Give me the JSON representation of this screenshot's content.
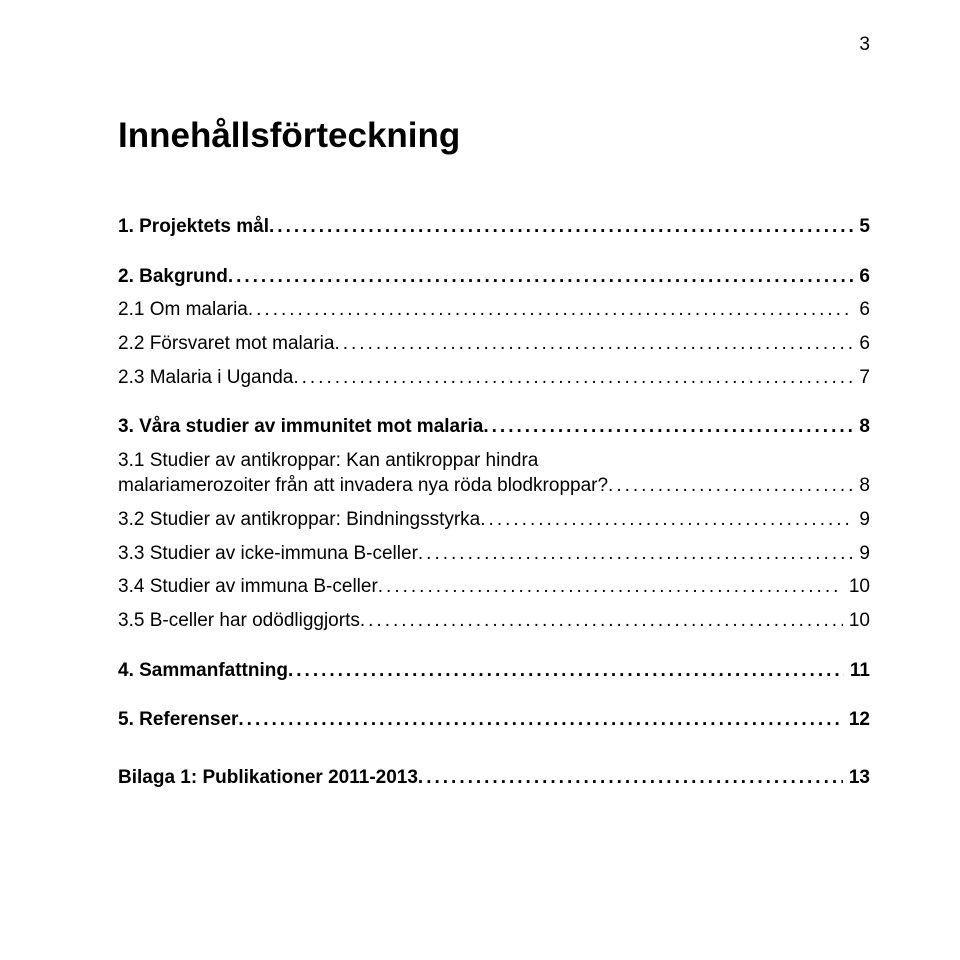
{
  "page_number": "3",
  "title": "Innehållsförteckning",
  "colors": {
    "background": "#ffffff",
    "text": "#000000"
  },
  "typography": {
    "title_fontsize_pt": 26,
    "body_fontsize_pt": 14,
    "font_family": "Verdana"
  },
  "toc": [
    {
      "level": 0,
      "label": "1. Projektets mål",
      "page": "5"
    },
    {
      "level": 0,
      "label": "2. Bakgrund",
      "page": "6"
    },
    {
      "level": 1,
      "label": "2.1 Om malaria",
      "page": "6"
    },
    {
      "level": 1,
      "label": "2.2 Försvaret mot malaria",
      "page": "6"
    },
    {
      "level": 1,
      "label": "2.3 Malaria i Uganda",
      "page": "7"
    },
    {
      "level": 0,
      "label": "3. Våra studier av immunitet mot malaria",
      "page": "8"
    },
    {
      "level": 1,
      "wrap": true,
      "line1": "3.1 Studier av antikroppar: Kan antikroppar hindra",
      "line2": "malariamerozoiter från att invadera nya röda blodkroppar?",
      "page": "8"
    },
    {
      "level": 1,
      "label": "3.2 Studier av antikroppar: Bindningsstyrka",
      "page": "9"
    },
    {
      "level": 1,
      "label": "3.3 Studier av icke-immuna B-celler",
      "page": "9"
    },
    {
      "level": 1,
      "label": "3.4 Studier av immuna B-celler",
      "page": "10"
    },
    {
      "level": 1,
      "label": "3.5 B-celler har odödliggjorts",
      "page": "10"
    },
    {
      "level": 0,
      "label": "4. Sammanfattning",
      "page": "11"
    },
    {
      "level": 0,
      "label": "5. Referenser",
      "page": "12"
    },
    {
      "level": 0,
      "appendix": true,
      "label": "Bilaga 1: Publikationer 2011-2013",
      "page": "13"
    }
  ]
}
